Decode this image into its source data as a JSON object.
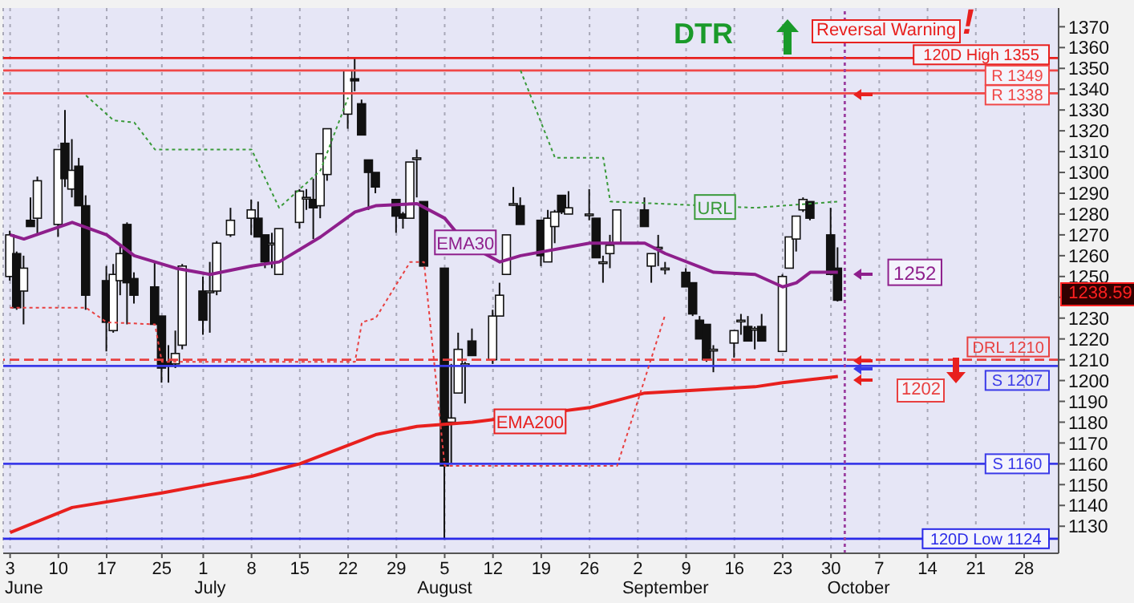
{
  "chart_data": {
    "type": "candlestick",
    "title": "DTR",
    "annotations": [
      "Reversal Warning",
      "!",
      {
        "text": "1252",
        "x": "--10-01",
        "y": 1252
      },
      "1202",
      "1238.59"
    ],
    "x": [
      "--06-03",
      "--06-04",
      "--06-05",
      "--06-06",
      "--06-07",
      "--06-10",
      "--06-11",
      "--06-12",
      "--06-13",
      "--06-14",
      "--06-17",
      "--06-18",
      "--06-19",
      "--06-20",
      "--06-21",
      "--06-24",
      "--06-25",
      "--06-26",
      "--06-27",
      "--06-28",
      "--07-01",
      "--07-02",
      "--07-03",
      "--07-05",
      "--07-08",
      "--07-09",
      "--07-10",
      "--07-11",
      "--07-12",
      "--07-15",
      "--07-16",
      "--07-17",
      "--07-18",
      "--07-19",
      "--07-22",
      "--07-23",
      "--07-24",
      "--07-25",
      "--07-26",
      "--07-29",
      "--07-30",
      "--07-31",
      "--08-01",
      "--08-02",
      "--08-05",
      "--08-06",
      "--08-07",
      "--08-08",
      "--08-09",
      "--08-12",
      "--08-13",
      "--08-14",
      "--08-15",
      "--08-16",
      "--08-19",
      "--08-20",
      "--08-21",
      "--08-22",
      "--08-23",
      "--08-26",
      "--08-27",
      "--08-28",
      "--08-29",
      "--08-30",
      "--09-03",
      "--09-04",
      "--09-05",
      "--09-06",
      "--09-09",
      "--09-10",
      "--09-11",
      "--09-12",
      "--09-13",
      "--09-16",
      "--09-17",
      "--09-18",
      "--09-19",
      "--09-20",
      "--09-23",
      "--09-24",
      "--09-25",
      "--09-26",
      "--09-27",
      "--09-30",
      "--10-01"
    ],
    "ohlc": [
      [
        1250,
        1272,
        1248,
        1270
      ],
      [
        1261,
        1262,
        1234,
        1235
      ],
      [
        1243,
        1260,
        1227,
        1254
      ],
      [
        1277,
        1288,
        1274,
        1274
      ],
      [
        1278,
        1298,
        1270,
        1296
      ],
      [
        1275,
        1311,
        1269,
        1311
      ],
      [
        1314,
        1330,
        1293,
        1297
      ],
      [
        1292,
        1316,
        1288,
        1301
      ],
      [
        1303,
        1307,
        1284,
        1284
      ],
      [
        1284,
        1289,
        1234,
        1241
      ],
      [
        1248,
        1255,
        1214,
        1228
      ],
      [
        1224,
        1256,
        1223,
        1251
      ],
      [
        1248,
        1265,
        1241,
        1261
      ],
      [
        1275,
        1276,
        1227,
        1247
      ],
      [
        1249,
        1252,
        1237,
        1241
      ],
      [
        1245,
        1257,
        1227,
        1227
      ],
      [
        1231,
        1231,
        1199,
        1206
      ],
      [
        1209,
        1217,
        1199,
        1207
      ],
      [
        1208,
        1224,
        1206,
        1213
      ],
      [
        1217,
        1256,
        1215,
        1255
      ],
      [
        1243,
        1250,
        1222,
        1229
      ],
      [
        1243,
        1257,
        1223,
        1243
      ],
      [
        1243,
        1267,
        1241,
        1266
      ],
      [
        1270,
        1283,
        1269,
        1277
      ],
      [
        1278,
        1287,
        1270,
        1282
      ],
      [
        1278,
        1286,
        1269,
        1269
      ],
      [
        1270,
        1270,
        1254,
        1257
      ],
      [
        1266,
        1271,
        1254,
        1266
      ],
      [
        1251,
        1273,
        1251,
        1273
      ],
      [
        1276,
        1292,
        1273,
        1291
      ],
      [
        1288,
        1292,
        1282,
        1288
      ],
      [
        1287,
        1297,
        1268,
        1283
      ],
      [
        1284,
        1309,
        1278,
        1309
      ],
      [
        1299,
        1321,
        1296,
        1321
      ],
      [
        1328,
        1349,
        1321,
        1349
      ],
      [
        1345,
        1355,
        1339,
        1344
      ],
      [
        1333,
        1335,
        1318,
        1318
      ],
      [
        1306,
        1306,
        1282,
        1300
      ],
      [
        1300,
        1300,
        1290,
        1293
      ],
      [
        1287,
        1287,
        1271,
        1279
      ],
      [
        1280,
        1281,
        1273,
        1278
      ],
      [
        1278,
        1305,
        1278,
        1305
      ],
      [
        1307,
        1311,
        1288,
        1307
      ],
      [
        1286,
        1286,
        1255,
        1255
      ],
      [
        1254,
        1254,
        1124,
        1159
      ],
      [
        1180,
        1208,
        1160,
        1182
      ],
      [
        1194,
        1223,
        1194,
        1215
      ],
      [
        1208,
        1209,
        1189,
        1208
      ],
      [
        1219,
        1225,
        1212,
        1212
      ],
      [
        1210,
        1234,
        1208,
        1231
      ],
      [
        1231,
        1247,
        1231,
        1241
      ],
      [
        1251,
        1270,
        1251,
        1270
      ],
      [
        1285,
        1293,
        1284,
        1285
      ],
      [
        1284,
        1288,
        1275,
        1275
      ],
      [
        1277,
        1277,
        1255,
        1260
      ],
      [
        1257,
        1282,
        1257,
        1278
      ],
      [
        1274,
        1282,
        1266,
        1281
      ],
      [
        1289,
        1289,
        1280,
        1281
      ],
      [
        1280,
        1291,
        1280,
        1283
      ],
      [
        1280,
        1292,
        1277,
        1280
      ],
      [
        1278,
        1278,
        1259,
        1259
      ],
      [
        1257,
        1260,
        1247,
        1257
      ],
      [
        1261,
        1270,
        1254,
        1265
      ],
      [
        1266,
        1282,
        1266,
        1282
      ],
      [
        1282,
        1288,
        1274,
        1274
      ],
      [
        1255,
        1261,
        1247,
        1261
      ],
      [
        1264,
        1270,
        1255,
        1264
      ],
      [
        1254,
        1257,
        1251,
        1254
      ],
      [
        1252,
        1254,
        1245,
        1245
      ],
      [
        1247,
        1247,
        1231,
        1232
      ],
      [
        1229,
        1231,
        1220,
        1220
      ],
      [
        1227,
        1227,
        1209,
        1210
      ],
      [
        1215,
        1217,
        1204,
        1215
      ],
      [
        1218,
        1224,
        1211,
        1224
      ],
      [
        1229,
        1232,
        1222,
        1229
      ],
      [
        1226,
        1231,
        1219,
        1219
      ],
      [
        1225,
        1226,
        1215,
        1225
      ],
      [
        1226,
        1232,
        1219,
        1219
      ],
      [
        1214,
        1251,
        1214,
        1250
      ],
      [
        1254,
        1269,
        1254,
        1269
      ],
      [
        1268,
        1279,
        1262,
        1279
      ],
      [
        1282,
        1288,
        1281,
        1287
      ],
      [
        1286,
        1286,
        1277,
        1278
      ],
      [
        1270,
        1283,
        1251,
        1251
      ],
      [
        1254,
        1264,
        1238,
        1238.59
      ]
    ],
    "series": [
      {
        "name": "EMA30",
        "type": "line",
        "color": "#8e1f8c",
        "x": [
          "--06-03",
          "--06-05",
          "--06-12",
          "--06-17",
          "--06-21",
          "--06-27",
          "--07-02",
          "--07-08",
          "--07-12",
          "--07-18",
          "--07-23",
          "--07-26",
          "--08-01",
          "--08-05",
          "--08-08",
          "--08-13",
          "--08-16",
          "--08-26",
          "--09-03",
          "--09-06",
          "--09-13",
          "--09-19",
          "--09-23",
          "--09-25",
          "--09-27",
          "--10-01"
        ],
        "values": [
          1270,
          1268,
          1276,
          1270,
          1260,
          1254,
          1251,
          1255,
          1257,
          1269,
          1281,
          1284,
          1285,
          1278,
          1266,
          1257,
          1260,
          1266,
          1266,
          1261,
          1252,
          1251,
          1245,
          1247,
          1252,
          1252
        ]
      },
      {
        "name": "EMA200",
        "type": "line",
        "color": "#e8201e",
        "x": [
          "--06-03",
          "--06-12",
          "--06-25",
          "--07-08",
          "--07-15",
          "--07-26",
          "--08-01",
          "--08-09",
          "--08-26",
          "--09-03",
          "--09-19",
          "--09-23",
          "--10-01"
        ],
        "values": [
          1127,
          1139,
          1146,
          1154,
          1160,
          1174,
          1178,
          1180,
          1187,
          1194,
          1197,
          1199,
          1202
        ]
      },
      {
        "name": "URL",
        "type": "line",
        "color": "#3a9a3a",
        "line_style": "dotted",
        "x": [
          "--06-14",
          "--06-18",
          "--06-21",
          "--06-24",
          "--07-08",
          "--07-12",
          "--07-18",
          "--07-22",
          "--08-01",
          "--08-16",
          "--08-21",
          "--08-28",
          "--08-29",
          "--09-19",
          "--10-01"
        ],
        "values": [
          1337,
          1325,
          1324,
          1311,
          1311,
          1283,
          1301,
          1336,
          null,
          1349,
          1307,
          1307,
          1286,
          1283,
          1286
        ]
      },
      {
        "type": "line",
        "color": "#e84040",
        "line_style": "dotted",
        "x": [
          "--06-03",
          "--06-14",
          "--06-17",
          "--06-24",
          "--06-25",
          "--07-23",
          "--07-24",
          "--07-26",
          "--07-31",
          "--08-02",
          "--08-05",
          "--08-30",
          "--09-06"
        ],
        "values": [
          1235,
          1235,
          1228,
          1227,
          1209,
          1209,
          1228,
          1230,
          1257,
          1257,
          1159,
          1159,
          1232
        ]
      }
    ],
    "ref_lines": [
      {
        "axis": "y",
        "value": 1355,
        "label": "120D High 1355",
        "color": "#e8201e"
      },
      {
        "axis": "y",
        "value": 1349,
        "label": "R 1349",
        "color": "#f04848"
      },
      {
        "axis": "y",
        "value": 1338,
        "label": "R 1338",
        "color": "#f04848"
      },
      {
        "axis": "y",
        "value": 1210,
        "label": "DRL 1210",
        "color": "#e84040",
        "line_style": "dashed"
      },
      {
        "axis": "y",
        "value": 1207,
        "label": "S 1207",
        "color": "#3a3ae8"
      },
      {
        "axis": "y",
        "value": 1160,
        "label": "S 1160",
        "color": "#3a3ae8"
      },
      {
        "axis": "y",
        "value": 1124,
        "label": "120D Low 1124",
        "color": "#2a2ae8"
      },
      {
        "axis": "x",
        "value": "--10-02",
        "color": "#9b3fa0",
        "line_style": "dotted"
      }
    ],
    "xlim": [
      "--06-02",
      "--11-02"
    ],
    "xticks": [
      {
        "value": "--06-03",
        "label": "3"
      },
      {
        "value": "--06-10",
        "label": "10"
      },
      {
        "value": "--06-17",
        "label": "17"
      },
      {
        "value": "--06-25",
        "label": "25"
      },
      {
        "value": "--07-01",
        "label": "1"
      },
      {
        "value": "--07-08",
        "label": "8"
      },
      {
        "value": "--07-15",
        "label": "15"
      },
      {
        "value": "--07-22",
        "label": "22"
      },
      {
        "value": "--07-29",
        "label": "29"
      },
      {
        "value": "--08-05",
        "label": "5"
      },
      {
        "value": "--08-12",
        "label": "12"
      },
      {
        "value": "--08-19",
        "label": "19"
      },
      {
        "value": "--08-26",
        "label": "26"
      },
      {
        "value": "--09-02",
        "label": "2"
      },
      {
        "value": "--09-09",
        "label": "9"
      },
      {
        "value": "--09-16",
        "label": "16"
      },
      {
        "value": "--09-23",
        "label": "23"
      },
      {
        "value": "--09-30",
        "label": "30"
      },
      {
        "value": "--10-07",
        "label": "7"
      },
      {
        "value": "--10-14",
        "label": "14"
      },
      {
        "value": "--10-21",
        "label": "21"
      },
      {
        "value": "--10-28",
        "label": "28"
      }
    ],
    "x2lim": [
      "--06-02",
      "--11-02"
    ],
    "x2ticks": [
      {
        "value": "--06-05",
        "label": "June"
      },
      {
        "value": "--07-02",
        "label": "July"
      },
      {
        "value": "--08-05",
        "label": "August"
      },
      {
        "value": "--09-06",
        "label": "September"
      },
      {
        "value": "--10-04",
        "label": "October"
      }
    ],
    "ylim": [
      1117,
      1379
    ],
    "yticks": [
      1130,
      1140,
      1150,
      1160,
      1170,
      1180,
      1190,
      1200,
      1210,
      1220,
      1230,
      {
        "value": 1240,
        "label": null
      },
      1250,
      1260,
      1270,
      1280,
      1290,
      1300,
      1310,
      1320,
      1330,
      1340,
      1350,
      1360,
      1370
    ],
    "grid": "x",
    "marker": "none"
  }
}
